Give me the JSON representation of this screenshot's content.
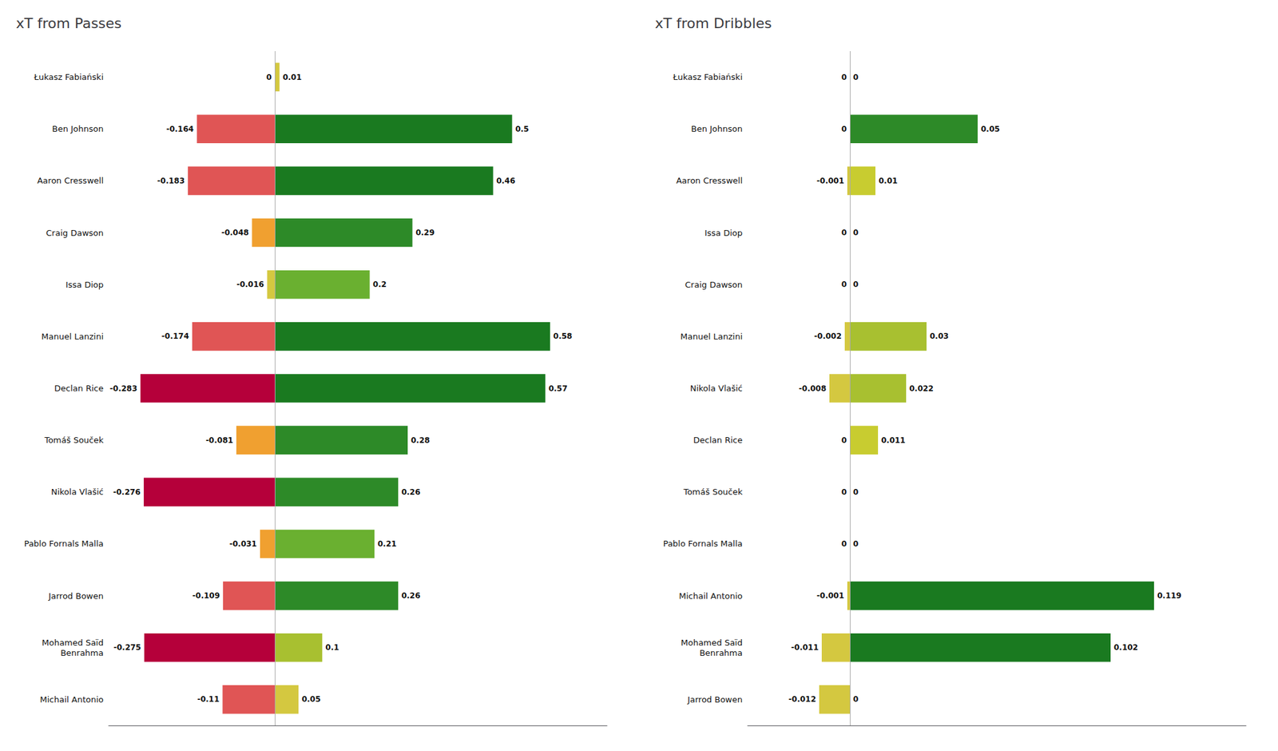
{
  "chart_data": [
    {
      "type": "bar",
      "title": "xT from Passes",
      "orientation": "horizontal",
      "categories": [
        "Łukasz Fabiański",
        "Ben Johnson",
        "Aaron Cresswell",
        "Craig Dawson",
        "Issa Diop",
        "Manuel Lanzini",
        "Declan Rice",
        "Tomáš Souček",
        "Nikola Vlašić",
        "Pablo Fornals Malla",
        "Jarrod Bowen",
        "Mohamed Saïd\nBenrahma",
        "Michail Antonio"
      ],
      "series": [
        {
          "values": [
            0,
            -0.164,
            -0.183,
            -0.048,
            -0.016,
            -0.174,
            -0.283,
            -0.081,
            -0.276,
            -0.031,
            -0.109,
            -0.275,
            -0.11
          ],
          "colors": [
            null,
            "#e05555",
            "#e05555",
            "#f0a030",
            "#d4c840",
            "#e05555",
            "#b5003a",
            "#f0a030",
            "#b5003a",
            "#f0a030",
            "#e05555",
            "#b5003a",
            "#e05555"
          ]
        },
        {
          "values": [
            0.01,
            0.5,
            0.46,
            0.29,
            0.2,
            0.58,
            0.57,
            0.28,
            0.26,
            0.21,
            0.26,
            0.1,
            0.05
          ],
          "colors": [
            "#d4c840",
            "#1a7a20",
            "#1a7a20",
            "#2d8a28",
            "#6ab030",
            "#1a7a20",
            "#1a7a20",
            "#2d8a28",
            "#2d8a28",
            "#6ab030",
            "#2d8a28",
            "#a8c030",
            "#d4c840"
          ]
        }
      ],
      "xlim": [
        -0.35,
        0.7
      ],
      "tick_labels": "y",
      "grid": false,
      "data_labels": true
    },
    {
      "type": "bar",
      "title": "xT from Dribbles",
      "orientation": "horizontal",
      "categories": [
        "Łukasz Fabiański",
        "Ben Johnson",
        "Aaron Cresswell",
        "Issa Diop",
        "Craig Dawson",
        "Manuel Lanzini",
        "Nikola Vlašić",
        "Declan Rice",
        "Tomáš Souček",
        "Pablo Fornals Malla",
        "Michail Antonio",
        "Mohamed Saïd\nBenrahma",
        "Jarrod Bowen"
      ],
      "series": [
        {
          "values": [
            0,
            0,
            -0.001,
            0,
            0,
            -0.002,
            -0.008,
            0,
            0,
            0,
            -0.001,
            -0.011,
            -0.012
          ],
          "colors": [
            null,
            null,
            "#d4c840",
            null,
            null,
            "#d4c840",
            "#d4c840",
            null,
            null,
            null,
            "#d4c840",
            "#d4c840",
            "#d4c840"
          ]
        },
        {
          "values": [
            0,
            0.05,
            0.01,
            0,
            0,
            0.03,
            0.022,
            0.011,
            0,
            0,
            0.119,
            0.102,
            0
          ],
          "colors": [
            null,
            "#2d8a28",
            "#c8cc30",
            null,
            null,
            "#a8c030",
            "#a8c030",
            "#c8cc30",
            null,
            null,
            "#1a7a20",
            "#1a7a20",
            null
          ]
        }
      ],
      "xlim": [
        -0.04,
        0.155
      ],
      "tick_labels": "y",
      "grid": false,
      "data_labels": true
    }
  ]
}
